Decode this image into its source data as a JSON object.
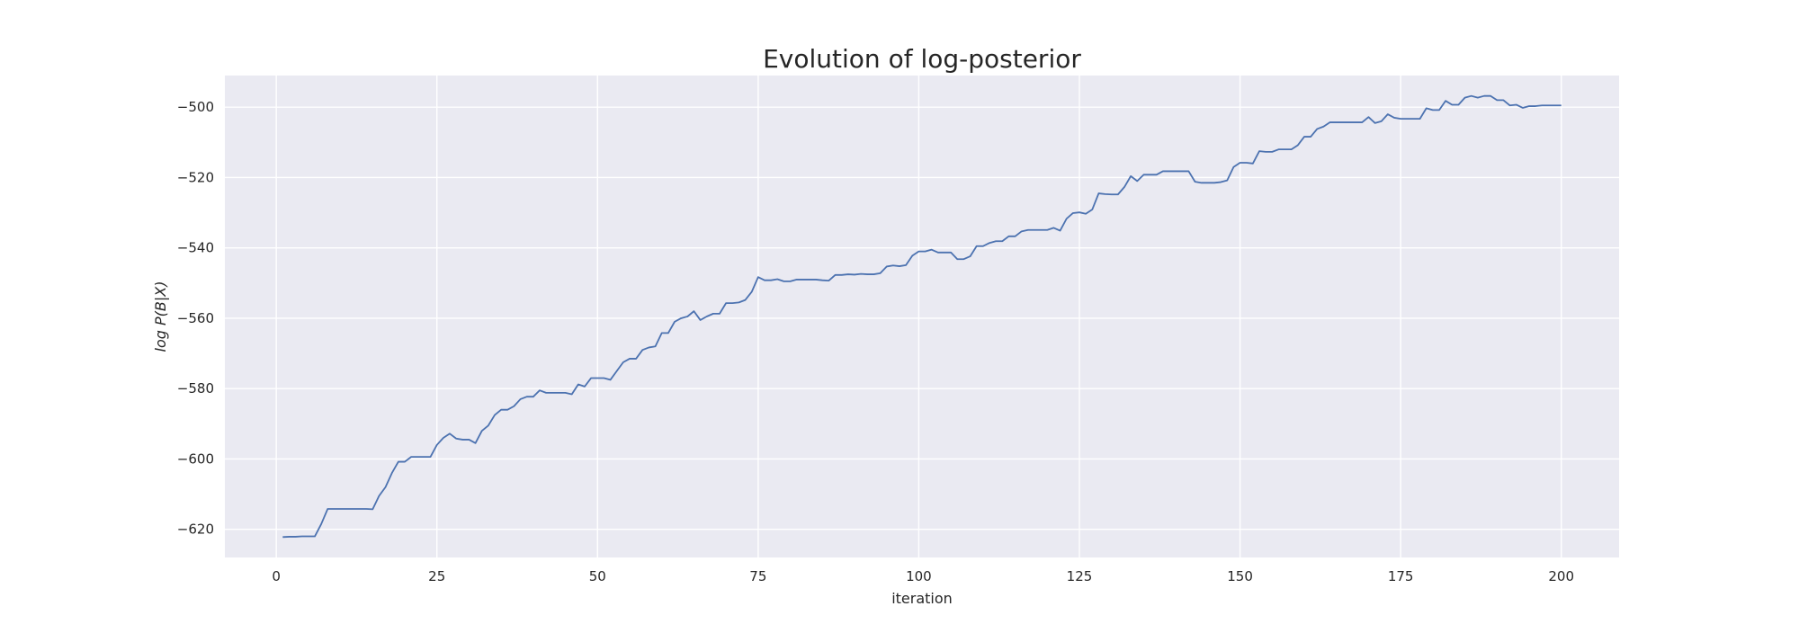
{
  "chart_data": {
    "type": "line",
    "title": "Evolution of log-posterior",
    "xlabel": "iteration",
    "ylabel": "log P(B|X)",
    "xlim": [
      -8,
      209
    ],
    "ylim": [
      -628,
      -491
    ],
    "xticks": [
      0,
      25,
      50,
      75,
      100,
      125,
      150,
      175,
      200
    ],
    "yticks": [
      -620,
      -600,
      -580,
      -560,
      -540,
      -520,
      -500
    ],
    "xtick_labels": [
      "0",
      "25",
      "50",
      "75",
      "100",
      "125",
      "150",
      "175",
      "200"
    ],
    "ytick_labels": [
      "−620",
      "−600",
      "−580",
      "−560",
      "−540",
      "−520",
      "−500"
    ],
    "grid": true,
    "colors": {
      "background": "#eaeaf2",
      "grid": "#ffffff",
      "line": "#4c72b0",
      "text": "#262626"
    },
    "series": [
      {
        "x": [
          1,
          2,
          3,
          4,
          5,
          6,
          7,
          8,
          9,
          10,
          11,
          12,
          13,
          14,
          15,
          16,
          17,
          18,
          19,
          20,
          21,
          22,
          23,
          24,
          25,
          26,
          27,
          28,
          29,
          30,
          31,
          32,
          33,
          34,
          35,
          36,
          37,
          38,
          39,
          40,
          41,
          42,
          43,
          44,
          45,
          46,
          47,
          48,
          49,
          50,
          51,
          52,
          53,
          54,
          55,
          56,
          57,
          58,
          59,
          60,
          61,
          62,
          63,
          64,
          65,
          66,
          67,
          68,
          69,
          70,
          71,
          72,
          73,
          74,
          75,
          76,
          77,
          78,
          79,
          80,
          81,
          82,
          83,
          84,
          85,
          86,
          87,
          88,
          89,
          90,
          91,
          92,
          93,
          94,
          95,
          96,
          97,
          98,
          99,
          100,
          101,
          102,
          103,
          104,
          105,
          106,
          107,
          108,
          109,
          110,
          111,
          112,
          113,
          114,
          115,
          116,
          117,
          118,
          119,
          120,
          121,
          122,
          123,
          124,
          125,
          126,
          127,
          128,
          129,
          130,
          131,
          132,
          133,
          134,
          135,
          136,
          137,
          138,
          139,
          140,
          141,
          142,
          143,
          144,
          145,
          146,
          147,
          148,
          149,
          150,
          151,
          152,
          153,
          154,
          155,
          156,
          157,
          158,
          159,
          160,
          161,
          162,
          163,
          164,
          165,
          166,
          167,
          168,
          169,
          170,
          171,
          172,
          173,
          174,
          175,
          176,
          177,
          178,
          179,
          180,
          181,
          182,
          183,
          184,
          185,
          186,
          187,
          188,
          189,
          190,
          191,
          192,
          193,
          194,
          195,
          196,
          197,
          198,
          199,
          200
        ],
        "y": [
          -622.2,
          -622.1,
          -622.1,
          -622.0,
          -622.0,
          -622.0,
          -618.5,
          -614.2,
          -614.2,
          -614.2,
          -614.2,
          -614.2,
          -614.2,
          -614.2,
          -614.3,
          -610.5,
          -608.0,
          -604.0,
          -600.8,
          -600.8,
          -599.4,
          -599.4,
          -599.4,
          -599.4,
          -596.0,
          -594.0,
          -592.8,
          -594.2,
          -594.5,
          -594.5,
          -595.5,
          -592.0,
          -590.5,
          -587.5,
          -586.0,
          -586.0,
          -585.0,
          -583.0,
          -582.3,
          -582.3,
          -580.5,
          -581.2,
          -581.2,
          -581.2,
          -581.2,
          -581.6,
          -578.8,
          -579.4,
          -577.0,
          -577.0,
          -577.0,
          -577.5,
          -575.0,
          -572.5,
          -571.5,
          -571.5,
          -569.0,
          -568.3,
          -568.0,
          -564.2,
          -564.2,
          -561.0,
          -560.0,
          -559.5,
          -558.0,
          -560.5,
          -559.5,
          -558.7,
          -558.7,
          -555.7,
          -555.7,
          -555.5,
          -554.8,
          -552.5,
          -548.3,
          -549.2,
          -549.2,
          -548.9,
          -549.5,
          -549.5,
          -549.0,
          -549.0,
          -549.0,
          -549.0,
          -549.2,
          -549.3,
          -547.7,
          -547.7,
          -547.5,
          -547.6,
          -547.4,
          -547.5,
          -547.5,
          -547.2,
          -545.3,
          -545.0,
          -545.2,
          -544.9,
          -542.2,
          -541.0,
          -541.0,
          -540.5,
          -541.3,
          -541.3,
          -541.3,
          -543.2,
          -543.2,
          -542.4,
          -539.5,
          -539.5,
          -538.6,
          -538.1,
          -538.1,
          -536.7,
          -536.7,
          -535.3,
          -534.9,
          -534.9,
          -534.9,
          -534.9,
          -534.3,
          -535.1,
          -531.7,
          -530.1,
          -529.9,
          -530.3,
          -529.1,
          -524.5,
          -524.7,
          -524.8,
          -524.8,
          -522.7,
          -519.6,
          -521.0,
          -519.2,
          -519.2,
          -519.2,
          -518.2,
          -518.2,
          -518.2,
          -518.2,
          -518.2,
          -521.2,
          -521.5,
          -521.5,
          -521.5,
          -521.3,
          -520.8,
          -517.0,
          -515.8,
          -515.8,
          -516.0,
          -512.5,
          -512.7,
          -512.7,
          -512.0,
          -512.0,
          -512.0,
          -510.8,
          -508.4,
          -508.4,
          -506.2,
          -505.5,
          -504.3,
          -504.3,
          -504.3,
          -504.3,
          -504.3,
          -504.3,
          -502.8,
          -504.5,
          -504.0,
          -502.0,
          -503.0,
          -503.3,
          -503.3,
          -503.3,
          -503.3,
          -500.3,
          -500.8,
          -500.8,
          -498.2,
          -499.3,
          -499.3,
          -497.3,
          -496.8,
          -497.3,
          -496.8,
          -496.8,
          -498.0,
          -498.0,
          -499.5,
          -499.3,
          -500.2,
          -499.7,
          -499.7,
          -499.5,
          -499.5,
          -499.5,
          -499.5
        ]
      }
    ]
  }
}
